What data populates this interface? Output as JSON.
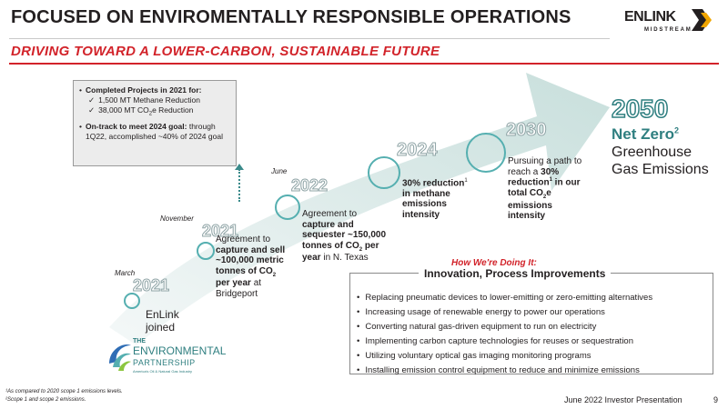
{
  "header": {
    "title": "FOCUSED ON ENVIROMENTALLY RESPONSIBLE OPERATIONS",
    "subtitle": "DRIVING TOWARD A LOWER-CARBON, SUSTAINABLE FUTURE"
  },
  "logo": {
    "name": "ENLINK",
    "tagline": "MIDSTREAM"
  },
  "callout": {
    "completed": "Completed Projects in 2021 for:",
    "item1": "1,500 MT Methane Reduction",
    "item2_pre": "38,000 MT CO",
    "item2_sub": "2",
    "item2_post": "e Reduction",
    "ontrack_bold": "On-track to meet 2024 goal:",
    "ontrack_text": "through 1Q22, accomplished ~40% of 2024 goal"
  },
  "milestones": {
    "m1": {
      "month": "March",
      "year": "2021",
      "text": "EnLink joined"
    },
    "m2": {
      "month": "November",
      "year": "2021",
      "text_a": "Agreement to",
      "text_b": "capture and sell ~100,000 metric tonnes of CO",
      "text_sub": "2",
      "text_c": " per year",
      "text_d": " at Bridgeport"
    },
    "m3": {
      "month": "June",
      "year": "2022",
      "text_a": "Agreement to",
      "text_b": "capture and sequester ~150,000 tonnes of CO",
      "text_sub": "2",
      "text_c": " per year",
      "text_d": " in N. Texas"
    },
    "m4": {
      "year": "2024",
      "text_b": "30% reduction",
      "text_sup": "1",
      "text_c": " in methane emissions intensity"
    },
    "m5": {
      "year": "2030",
      "text_a": "Pursuing a path to reach a ",
      "text_b": "30% reduction",
      "text_sup": "1",
      "text_c": " in our total CO",
      "text_sub": "2",
      "text_d": "e emissions intensity"
    }
  },
  "goal": {
    "year": "2050",
    "label": "Net Zero",
    "sup": "2",
    "desc": "Greenhouse Gas Emissions"
  },
  "how": {
    "heading": "How We're Doing It:",
    "box_title": "Innovation, Process Improvements",
    "items": [
      "Replacing pneumatic devices to lower-emitting or zero-emitting alternatives",
      "Increasing usage of renewable energy to power our operations",
      "Converting natural gas-driven equipment to run on electricity",
      "Implementing carbon capture technologies for reuses or sequestration",
      "Utilizing voluntary optical gas imaging monitoring programs",
      "Installing emission control equipment to reduce and minimize emissions"
    ]
  },
  "partnership": {
    "the": "THE",
    "line1": "ENVIRONMENTAL",
    "line2": "PARTNERSHIP",
    "line3": "America's Oil & Natural Gas Industry"
  },
  "footnotes": {
    "f1": "¹As compared to 2020 scope 1 emissions levels.",
    "f2": "²Scope 1 and scope 2 emissions."
  },
  "footer": {
    "presentation": "June 2022 Investor Presentation",
    "page": "9"
  },
  "colors": {
    "teal": "#55afb0",
    "dark_teal": "#2f7f80",
    "red": "#d2232a",
    "arrow": "#d3e6e4"
  }
}
